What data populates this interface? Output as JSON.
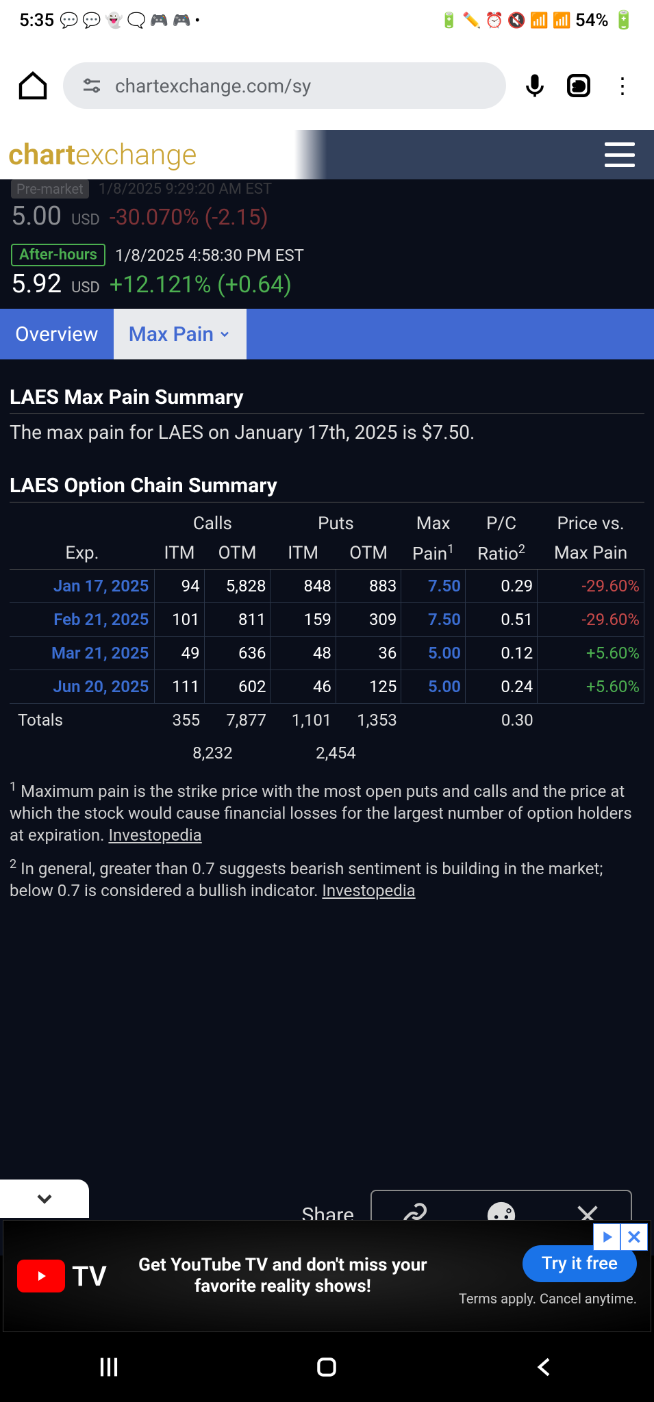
{
  "status": {
    "time": "5:35",
    "battery": "54%"
  },
  "browser": {
    "url": "chartexchange.com/sy"
  },
  "logo": {
    "part1": "chart",
    "part2": "exchange"
  },
  "premarket": {
    "label": "Pre-market",
    "timestamp": "1/8/2025 9:29:20 AM EST",
    "price": "5.00",
    "currency": "USD",
    "change": "-30.070% (-2.15)"
  },
  "afterhours": {
    "label": "After-hours",
    "timestamp": "1/8/2025 4:58:30 PM EST",
    "price": "5.92",
    "currency": "USD",
    "change": "+12.121% (+0.64)"
  },
  "tabs": {
    "overview": "Overview",
    "maxpain": "Max Pain"
  },
  "summary": {
    "title": "LAES Max Pain Summary",
    "text": "The max pain for LAES on January 17th, 2025 is $7.50."
  },
  "chain": {
    "title": "LAES Option Chain Summary",
    "headers": {
      "calls": "Calls",
      "puts": "Puts",
      "maxpain": "Max",
      "pain": "Pain",
      "pc": "P/C",
      "ratio": "Ratio",
      "priceVs": "Price vs.",
      "maxPain2": "Max Pain",
      "exp": "Exp.",
      "itm": "ITM",
      "otm": "OTM"
    },
    "rows": [
      {
        "date": "Jan 17, 2025",
        "citm": "94",
        "cotm": "5,828",
        "pitm": "848",
        "potm": "883",
        "mp": "7.50",
        "pc": "0.29",
        "pvm": "-29.60%",
        "pvmClass": "neg"
      },
      {
        "date": "Feb 21, 2025",
        "citm": "101",
        "cotm": "811",
        "pitm": "159",
        "potm": "309",
        "mp": "7.50",
        "pc": "0.51",
        "pvm": "-29.60%",
        "pvmClass": "neg"
      },
      {
        "date": "Mar 21, 2025",
        "citm": "49",
        "cotm": "636",
        "pitm": "48",
        "potm": "36",
        "mp": "5.00",
        "pc": "0.12",
        "pvm": "+5.60%",
        "pvmClass": "pos"
      },
      {
        "date": "Jun 20, 2025",
        "citm": "111",
        "cotm": "602",
        "pitm": "46",
        "potm": "125",
        "mp": "5.00",
        "pc": "0.24",
        "pvm": "+5.60%",
        "pvmClass": "pos"
      }
    ],
    "totals": {
      "label": "Totals",
      "citm": "355",
      "cotm": "7,877",
      "pitm": "1,101",
      "potm": "1,353",
      "pc": "0.30",
      "callsum": "8,232",
      "putsum": "2,454"
    }
  },
  "footnotes": {
    "f1": "Maximum pain is the strike price with the most open puts and calls and the price at which the stock would cause financial losses for the largest number of option holders at expiration. ",
    "f1link": "Investopedia",
    "f2": "In general, greater than 0.7 suggests bearish sentiment is building in the market; below 0.7 is considered a bullish indicator. ",
    "f2link": "Investopedia"
  },
  "share": {
    "label": "Share"
  },
  "ad": {
    "tv": "TV",
    "text": "Get YouTube TV and don't miss your favorite reality shows!",
    "cta": "Try it free",
    "terms": "Terms apply. Cancel anytime."
  }
}
